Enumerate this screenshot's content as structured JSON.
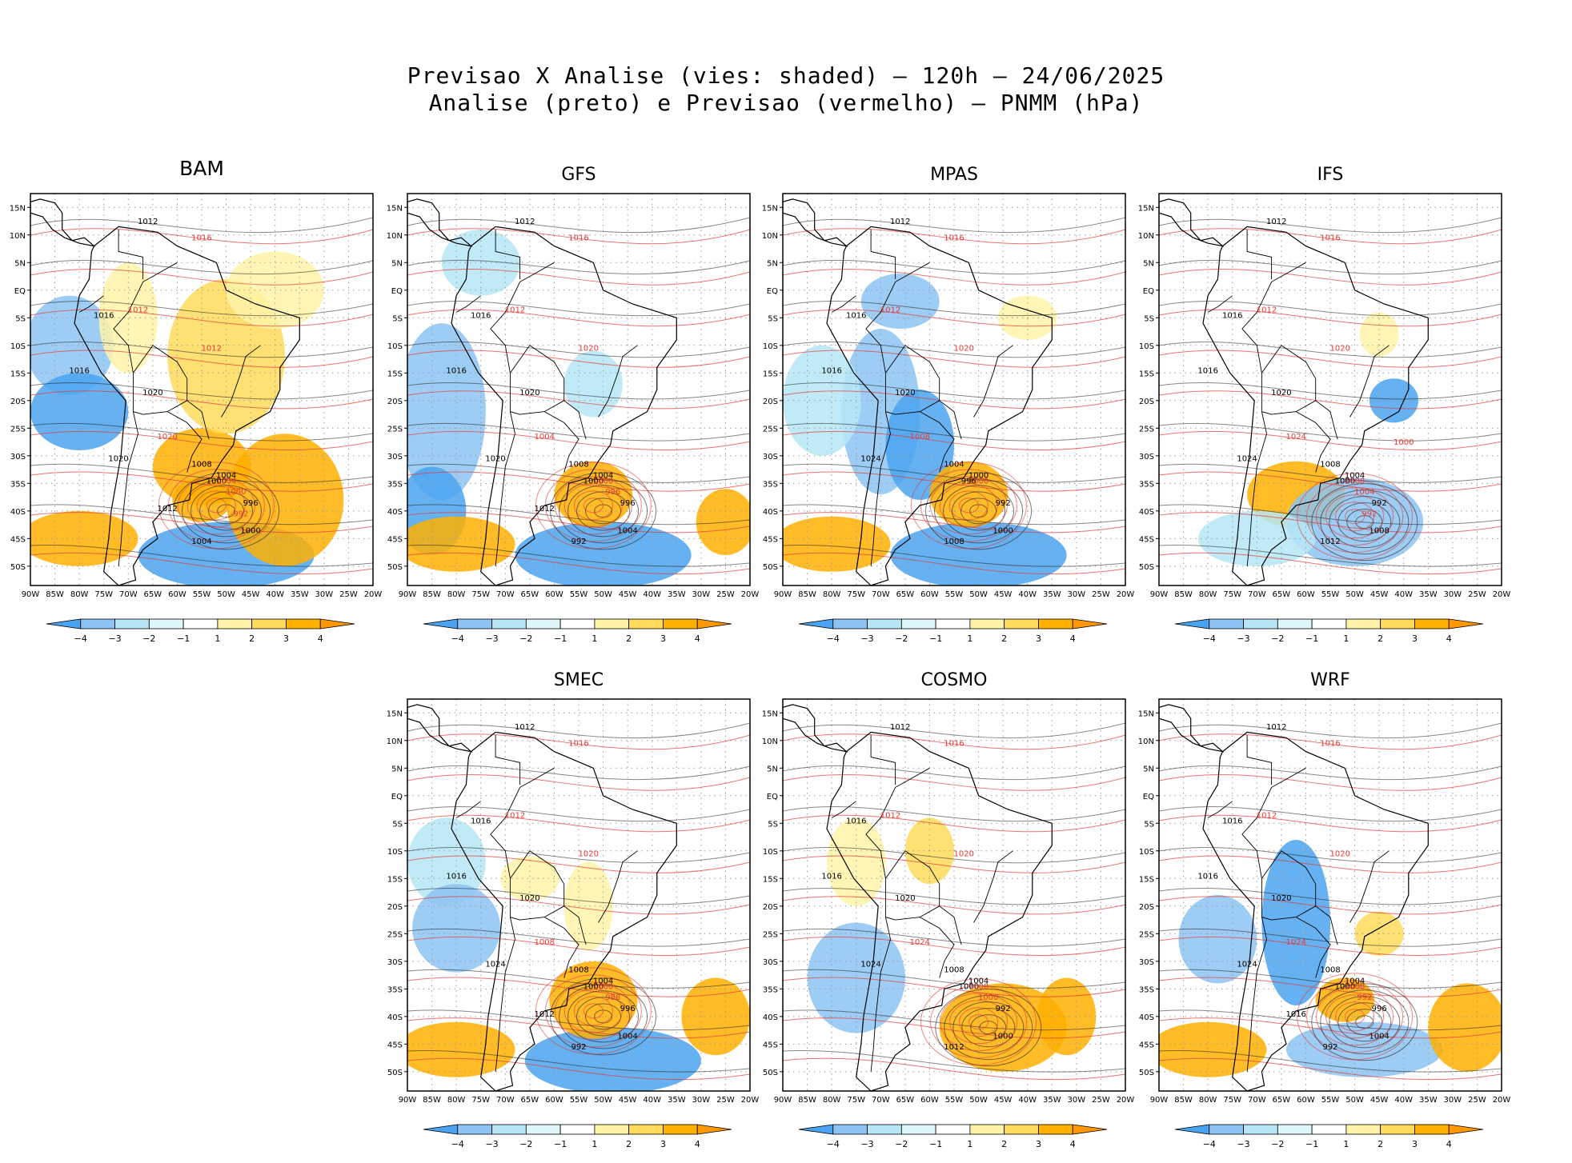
{
  "title": {
    "line1": "Previsao X Analise (vies: shaded) – 120h – 24/06/2025",
    "line2": "Analise (preto) e Previsao (vermelho) – PNMM (hPa)"
  },
  "lat_labels": [
    "15N",
    "10N",
    "5N",
    "EQ",
    "5S",
    "10S",
    "15S",
    "20S",
    "25S",
    "30S",
    "35S",
    "40S",
    "45S",
    "50S"
  ],
  "lon_labels": [
    "90W",
    "85W",
    "80W",
    "75W",
    "70W",
    "65W",
    "60W",
    "55W",
    "50W",
    "45W",
    "40W",
    "35W",
    "30W",
    "25W",
    "20W"
  ],
  "colorbar": {
    "labels": [
      "-4",
      "-3",
      "-2",
      "-1",
      "1",
      "2",
      "3",
      "4"
    ],
    "colors": [
      "#4aa3f0",
      "#8cc3f2",
      "#b6e6f6",
      "#def7fb",
      "#ffffff",
      "#fff3a8",
      "#ffdb5a",
      "#ffb000",
      "#ff9800"
    ]
  },
  "panels": [
    {
      "name": "BAM",
      "iso_black": [
        "1012",
        "1016",
        "1016",
        "1020",
        "1020",
        "1008",
        "1004",
        "1000",
        "996",
        "1004",
        "1000",
        "1012"
      ],
      "iso_red": [
        "1016",
        "1012",
        "1012",
        "1020",
        "1004",
        "1000",
        "992"
      ]
    },
    {
      "name": "GFS",
      "iso_black": [
        "1012",
        "1016",
        "1016",
        "1020",
        "1020",
        "1008",
        "1004",
        "1000",
        "996",
        "992",
        "1004",
        "1012"
      ],
      "iso_red": [
        "1016",
        "1012",
        "1020",
        "1004",
        "1000",
        "996"
      ]
    },
    {
      "name": "MPAS",
      "iso_black": [
        "1012",
        "1016",
        "1016",
        "1020",
        "1024",
        "1004",
        "1000",
        "996",
        "992",
        "1008",
        "1000"
      ],
      "iso_red": [
        "1016",
        "1012",
        "1020",
        "1008",
        "1000"
      ]
    },
    {
      "name": "IFS",
      "iso_black": [
        "1012",
        "1016",
        "1016",
        "1020",
        "1024",
        "1008",
        "1004",
        "1000",
        "992",
        "1012",
        "1008"
      ],
      "iso_red": [
        "1016",
        "1012",
        "1020",
        "1024",
        "1008",
        "1004",
        "992",
        "1000"
      ]
    },
    {
      "name": "SMEC",
      "iso_black": [
        "1012",
        "1016",
        "1016",
        "1020",
        "1024",
        "1008",
        "1004",
        "1000",
        "996",
        "992",
        "1004",
        "1012"
      ],
      "iso_red": [
        "1016",
        "1012",
        "1020",
        "1008",
        "1000",
        "988"
      ]
    },
    {
      "name": "COSMO",
      "iso_black": [
        "1012",
        "1016",
        "1016",
        "1020",
        "1024",
        "1008",
        "1004",
        "1000",
        "992",
        "1012",
        "1000"
      ],
      "iso_red": [
        "1016",
        "1012",
        "1020",
        "1024",
        "1008",
        "1000"
      ]
    },
    {
      "name": "WRF",
      "iso_black": [
        "1012",
        "1016",
        "1016",
        "1020",
        "1024",
        "1008",
        "1004",
        "1000",
        "996",
        "992",
        "1004",
        "1016"
      ],
      "iso_red": [
        "1016",
        "1012",
        "1020",
        "1024",
        "1008",
        "992"
      ]
    }
  ]
}
